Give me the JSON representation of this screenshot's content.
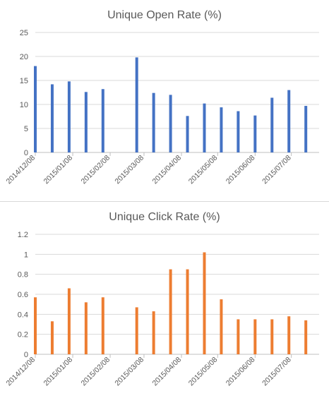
{
  "chart_data": [
    {
      "type": "bar",
      "title": "Unique Open Rate (%)",
      "xlabel": "",
      "ylabel": "",
      "ylim": [
        0,
        25
      ],
      "yticks": [
        0,
        5,
        10,
        15,
        20,
        25
      ],
      "grid": true,
      "legend": "none",
      "color": "#4472c4",
      "x_tick_labels": [
        "2014/12/08",
        "2015/01/08",
        "2015/02/08",
        "2015/03/08",
        "2015/04/08",
        "2015/05/08",
        "2015/06/08",
        "2015/07/08"
      ],
      "dates": [
        "2014/12/08",
        "2014/12/22",
        "2015/01/05",
        "2015/01/19",
        "2015/02/02",
        "2015/03/02",
        "2015/03/16",
        "2015/03/30",
        "2015/04/13",
        "2015/04/27",
        "2015/05/11",
        "2015/05/25",
        "2015/06/08",
        "2015/06/22",
        "2015/07/06",
        "2015/07/20"
      ],
      "values": [
        18,
        14.2,
        14.8,
        12.6,
        13.2,
        19.8,
        12.4,
        12,
        7.6,
        10.2,
        9.4,
        8.6,
        7.7,
        11.4,
        13,
        9.7
      ]
    },
    {
      "type": "bar",
      "title": "Unique Click Rate (%)",
      "xlabel": "",
      "ylabel": "",
      "ylim": [
        0,
        1.2
      ],
      "yticks": [
        0,
        0.2,
        0.4,
        0.6,
        0.8,
        1,
        1.2
      ],
      "grid": true,
      "legend": "none",
      "color": "#ed7d31",
      "x_tick_labels": [
        "2014/12/08",
        "2015/01/08",
        "2015/02/08",
        "2015/03/08",
        "2015/04/08",
        "2015/05/08",
        "2015/06/08",
        "2015/07/08"
      ],
      "dates": [
        "2014/12/08",
        "2014/12/22",
        "2015/01/05",
        "2015/01/19",
        "2015/02/02",
        "2015/03/02",
        "2015/03/16",
        "2015/03/30",
        "2015/04/13",
        "2015/04/27",
        "2015/05/11",
        "2015/05/25",
        "2015/06/08",
        "2015/06/22",
        "2015/07/06",
        "2015/07/20"
      ],
      "values": [
        0.57,
        0.33,
        0.66,
        0.52,
        0.57,
        0.47,
        0.43,
        0.85,
        0.85,
        1.02,
        0.55,
        0.35,
        0.35,
        0.35,
        0.38,
        0.34
      ]
    }
  ]
}
